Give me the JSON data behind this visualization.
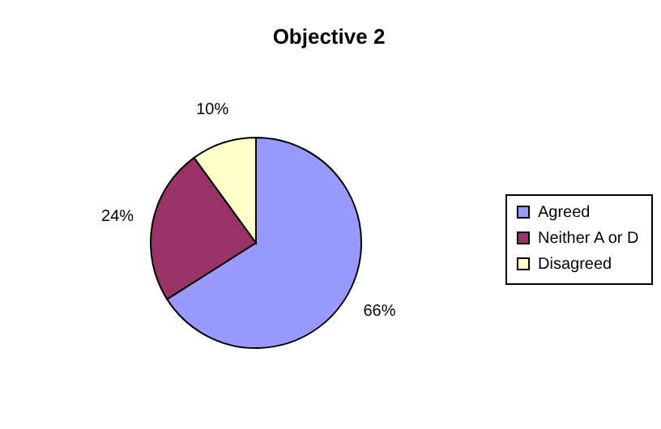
{
  "chart_data": {
    "type": "pie",
    "title": "Objective 2",
    "categories": [
      "Agreed",
      "Neither A or D",
      "Disagreed"
    ],
    "values": [
      66,
      24,
      10
    ],
    "colors": [
      "#9999ff",
      "#993366",
      "#ffffcc"
    ],
    "value_labels": [
      "66%",
      "24%",
      "10%"
    ],
    "legend": "right"
  }
}
